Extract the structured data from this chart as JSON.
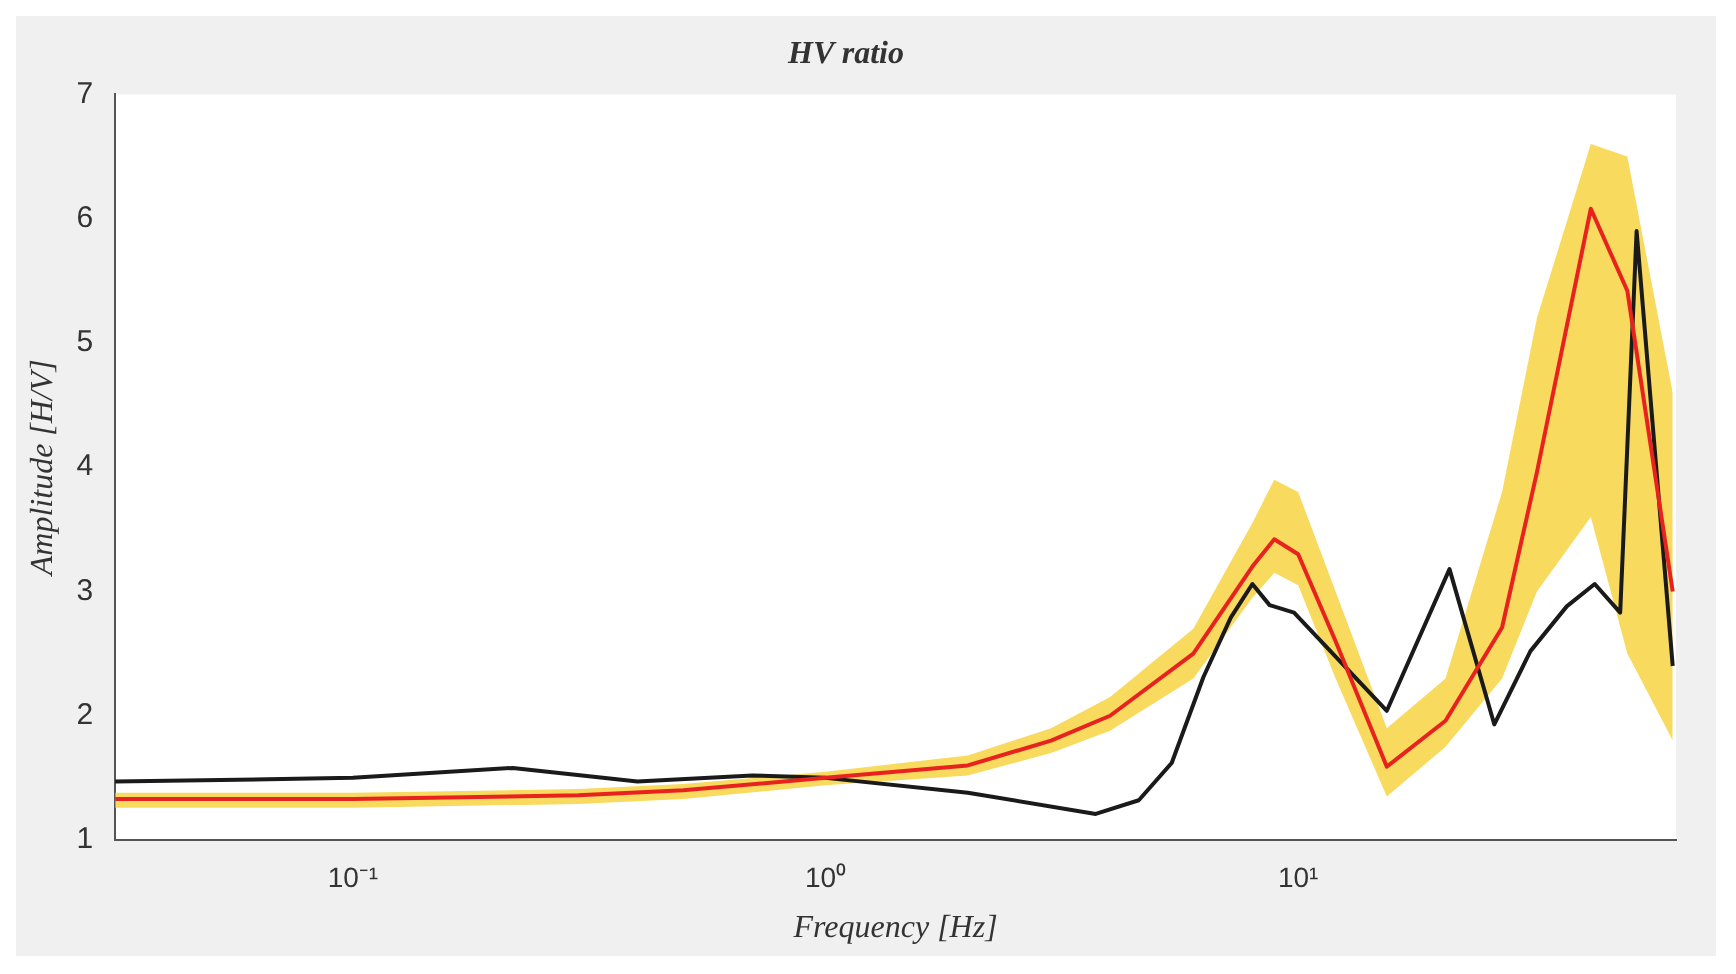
{
  "chart_data": {
    "type": "line",
    "title": "HV ratio",
    "xlabel": "Frequency [Hz]",
    "ylabel": "Amplitude [H/V]",
    "log": "x",
    "xlim": [
      0.0314,
      63
    ],
    "xticks": [
      {
        "value": 0.1,
        "label": "10⁻¹"
      },
      {
        "value": 1,
        "label": "10⁰"
      },
      {
        "value": 10,
        "label": "10¹"
      }
    ],
    "ylim": [
      1,
      7
    ],
    "yticks": [
      1,
      2,
      3,
      4,
      5,
      6,
      7
    ],
    "grid": false,
    "legend": false,
    "marker": "none",
    "line_style": "solid",
    "series": [
      {
        "color": "#e8231f",
        "x": [
          0.0314,
          0.1,
          0.3,
          0.5,
          1,
          2,
          3,
          4,
          6,
          8,
          8.9,
          10,
          12,
          15.4,
          20.5,
          27,
          32,
          41.6,
          49.7,
          62
        ],
        "values": [
          1.33,
          1.33,
          1.36,
          1.4,
          1.5,
          1.6,
          1.8,
          2.0,
          2.5,
          3.2,
          3.42,
          3.3,
          2.6,
          1.59,
          1.96,
          2.71,
          3.96,
          6.08,
          5.42,
          3.0
        ],
        "lower": [
          1.26,
          1.26,
          1.29,
          1.33,
          1.44,
          1.52,
          1.7,
          1.88,
          2.3,
          2.95,
          3.15,
          3.05,
          2.3,
          1.35,
          1.75,
          2.3,
          3.0,
          3.6,
          2.5,
          1.8
        ],
        "upper": [
          1.38,
          1.38,
          1.41,
          1.45,
          1.55,
          1.68,
          1.9,
          2.15,
          2.7,
          3.55,
          3.9,
          3.8,
          3.0,
          1.9,
          2.3,
          3.8,
          5.2,
          6.6,
          6.5,
          4.6
        ]
      },
      {
        "color": "#1a1a1a",
        "x": [
          0.0314,
          0.1,
          0.218,
          0.4,
          0.7,
          1,
          2,
          3.73,
          4.6,
          5.4,
          6.3,
          7.2,
          8.0,
          8.7,
          9.8,
          15.4,
          20.9,
          26,
          31,
          37,
          42.4,
          48,
          52,
          62
        ],
        "values": [
          1.47,
          1.5,
          1.58,
          1.47,
          1.52,
          1.5,
          1.38,
          1.21,
          1.32,
          1.62,
          2.31,
          2.79,
          3.06,
          2.89,
          2.83,
          2.04,
          3.18,
          1.93,
          2.52,
          2.88,
          3.06,
          2.83,
          5.9,
          2.4
        ]
      }
    ]
  }
}
